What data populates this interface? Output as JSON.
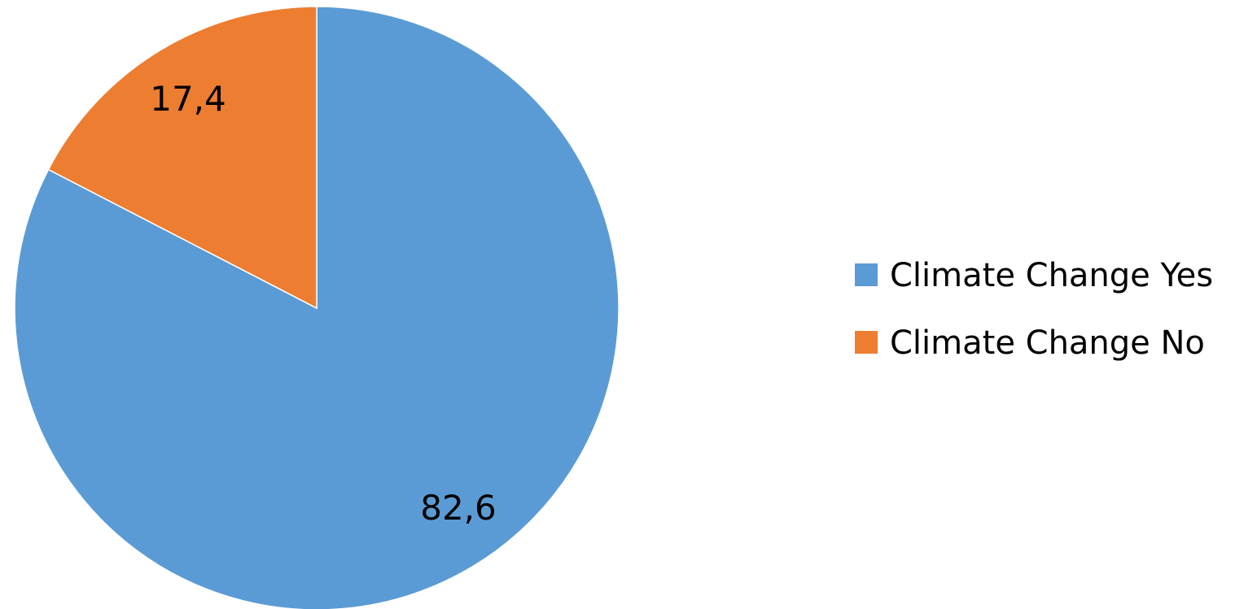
{
  "chart_data": {
    "type": "pie",
    "categories": [
      "Climate Change Yes",
      "Climate Change No"
    ],
    "values": [
      82.6,
      17.4
    ],
    "value_labels": [
      "82,6",
      "17,4"
    ],
    "colors": [
      "#5B9BD5",
      "#ED7D31"
    ],
    "start": "12 o'clock",
    "direction": "clockwise",
    "legend": {
      "placement": "right",
      "entries": [
        "Climate Change Yes",
        "Climate Change No"
      ]
    }
  }
}
